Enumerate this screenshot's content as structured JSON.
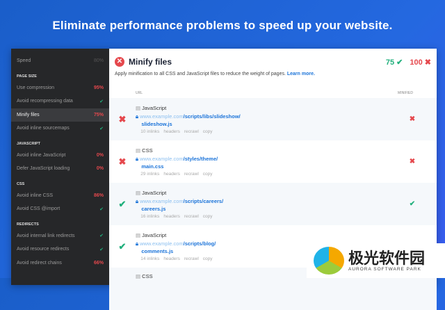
{
  "hero": "Eliminate performance problems to speed up your website.",
  "sidebar": {
    "top": {
      "label": "Speed",
      "value": "80%"
    },
    "sections": [
      {
        "title": "PAGE SIZE",
        "items": [
          {
            "label": "Use compression",
            "value": "95%",
            "status": "red"
          },
          {
            "label": "Avoid recompressing data",
            "value": "✔",
            "status": "green"
          },
          {
            "label": "Minify files",
            "value": "75%",
            "status": "red",
            "active": true
          },
          {
            "label": "Avoid inline sourcemaps",
            "value": "✔",
            "status": "green"
          }
        ]
      },
      {
        "title": "JAVASCRIPT",
        "items": [
          {
            "label": "Avoid inline JavaScript",
            "value": "0%",
            "status": "red"
          },
          {
            "label": "Defer JavaScript loading",
            "value": "0%",
            "status": "red"
          }
        ]
      },
      {
        "title": "CSS",
        "items": [
          {
            "label": "Avoid inline CSS",
            "value": "86%",
            "status": "red"
          },
          {
            "label": "Avoid CSS @import",
            "value": "✔",
            "status": "green"
          }
        ]
      },
      {
        "title": "REDIRECTS",
        "items": [
          {
            "label": "Avoid internal link redirects",
            "value": "✔",
            "status": "green"
          },
          {
            "label": "Avoid resource redirects",
            "value": "✔",
            "status": "green"
          },
          {
            "label": "Avoid redirect chains",
            "value": "66%",
            "status": "red"
          }
        ]
      }
    ]
  },
  "main": {
    "title": "Minify files",
    "score_pass": "75 ✔",
    "score_fail": "100 ✖",
    "description": "Apply minification to all CSS and JavaScript files to reduce the weight of pages.",
    "learn_more": "Learn more.",
    "col_url": "URL",
    "col_minified": "MINIFIED",
    "rows": [
      {
        "ok": false,
        "type": "JavaScript",
        "host": "www.example.com",
        "path": "/scripts/libs/slideshow/",
        "file": "slideshow.js",
        "inlinks": "10 inlinks",
        "minified": false
      },
      {
        "ok": false,
        "type": "CSS",
        "host": "www.example.com",
        "path": "/styles/theme/",
        "file": "main.css",
        "inlinks": "29 inlinks",
        "minified": false
      },
      {
        "ok": true,
        "type": "JavaScript",
        "host": "www.example.com",
        "path": "/scripts/careers/",
        "file": "careers.js",
        "inlinks": "16 inlinks",
        "minified": true
      },
      {
        "ok": true,
        "type": "JavaScript",
        "host": "www.example.com",
        "path": "/scripts/blog/",
        "file": "comments.js",
        "inlinks": "14 inlinks",
        "minified": true
      },
      {
        "type": "CSS"
      }
    ],
    "actions": {
      "headers": "headers",
      "recrawl": "recrawl",
      "copy": "copy"
    }
  },
  "watermark": {
    "cn": "极光软件园",
    "en": "AURORA SOFTWARE PARK"
  }
}
